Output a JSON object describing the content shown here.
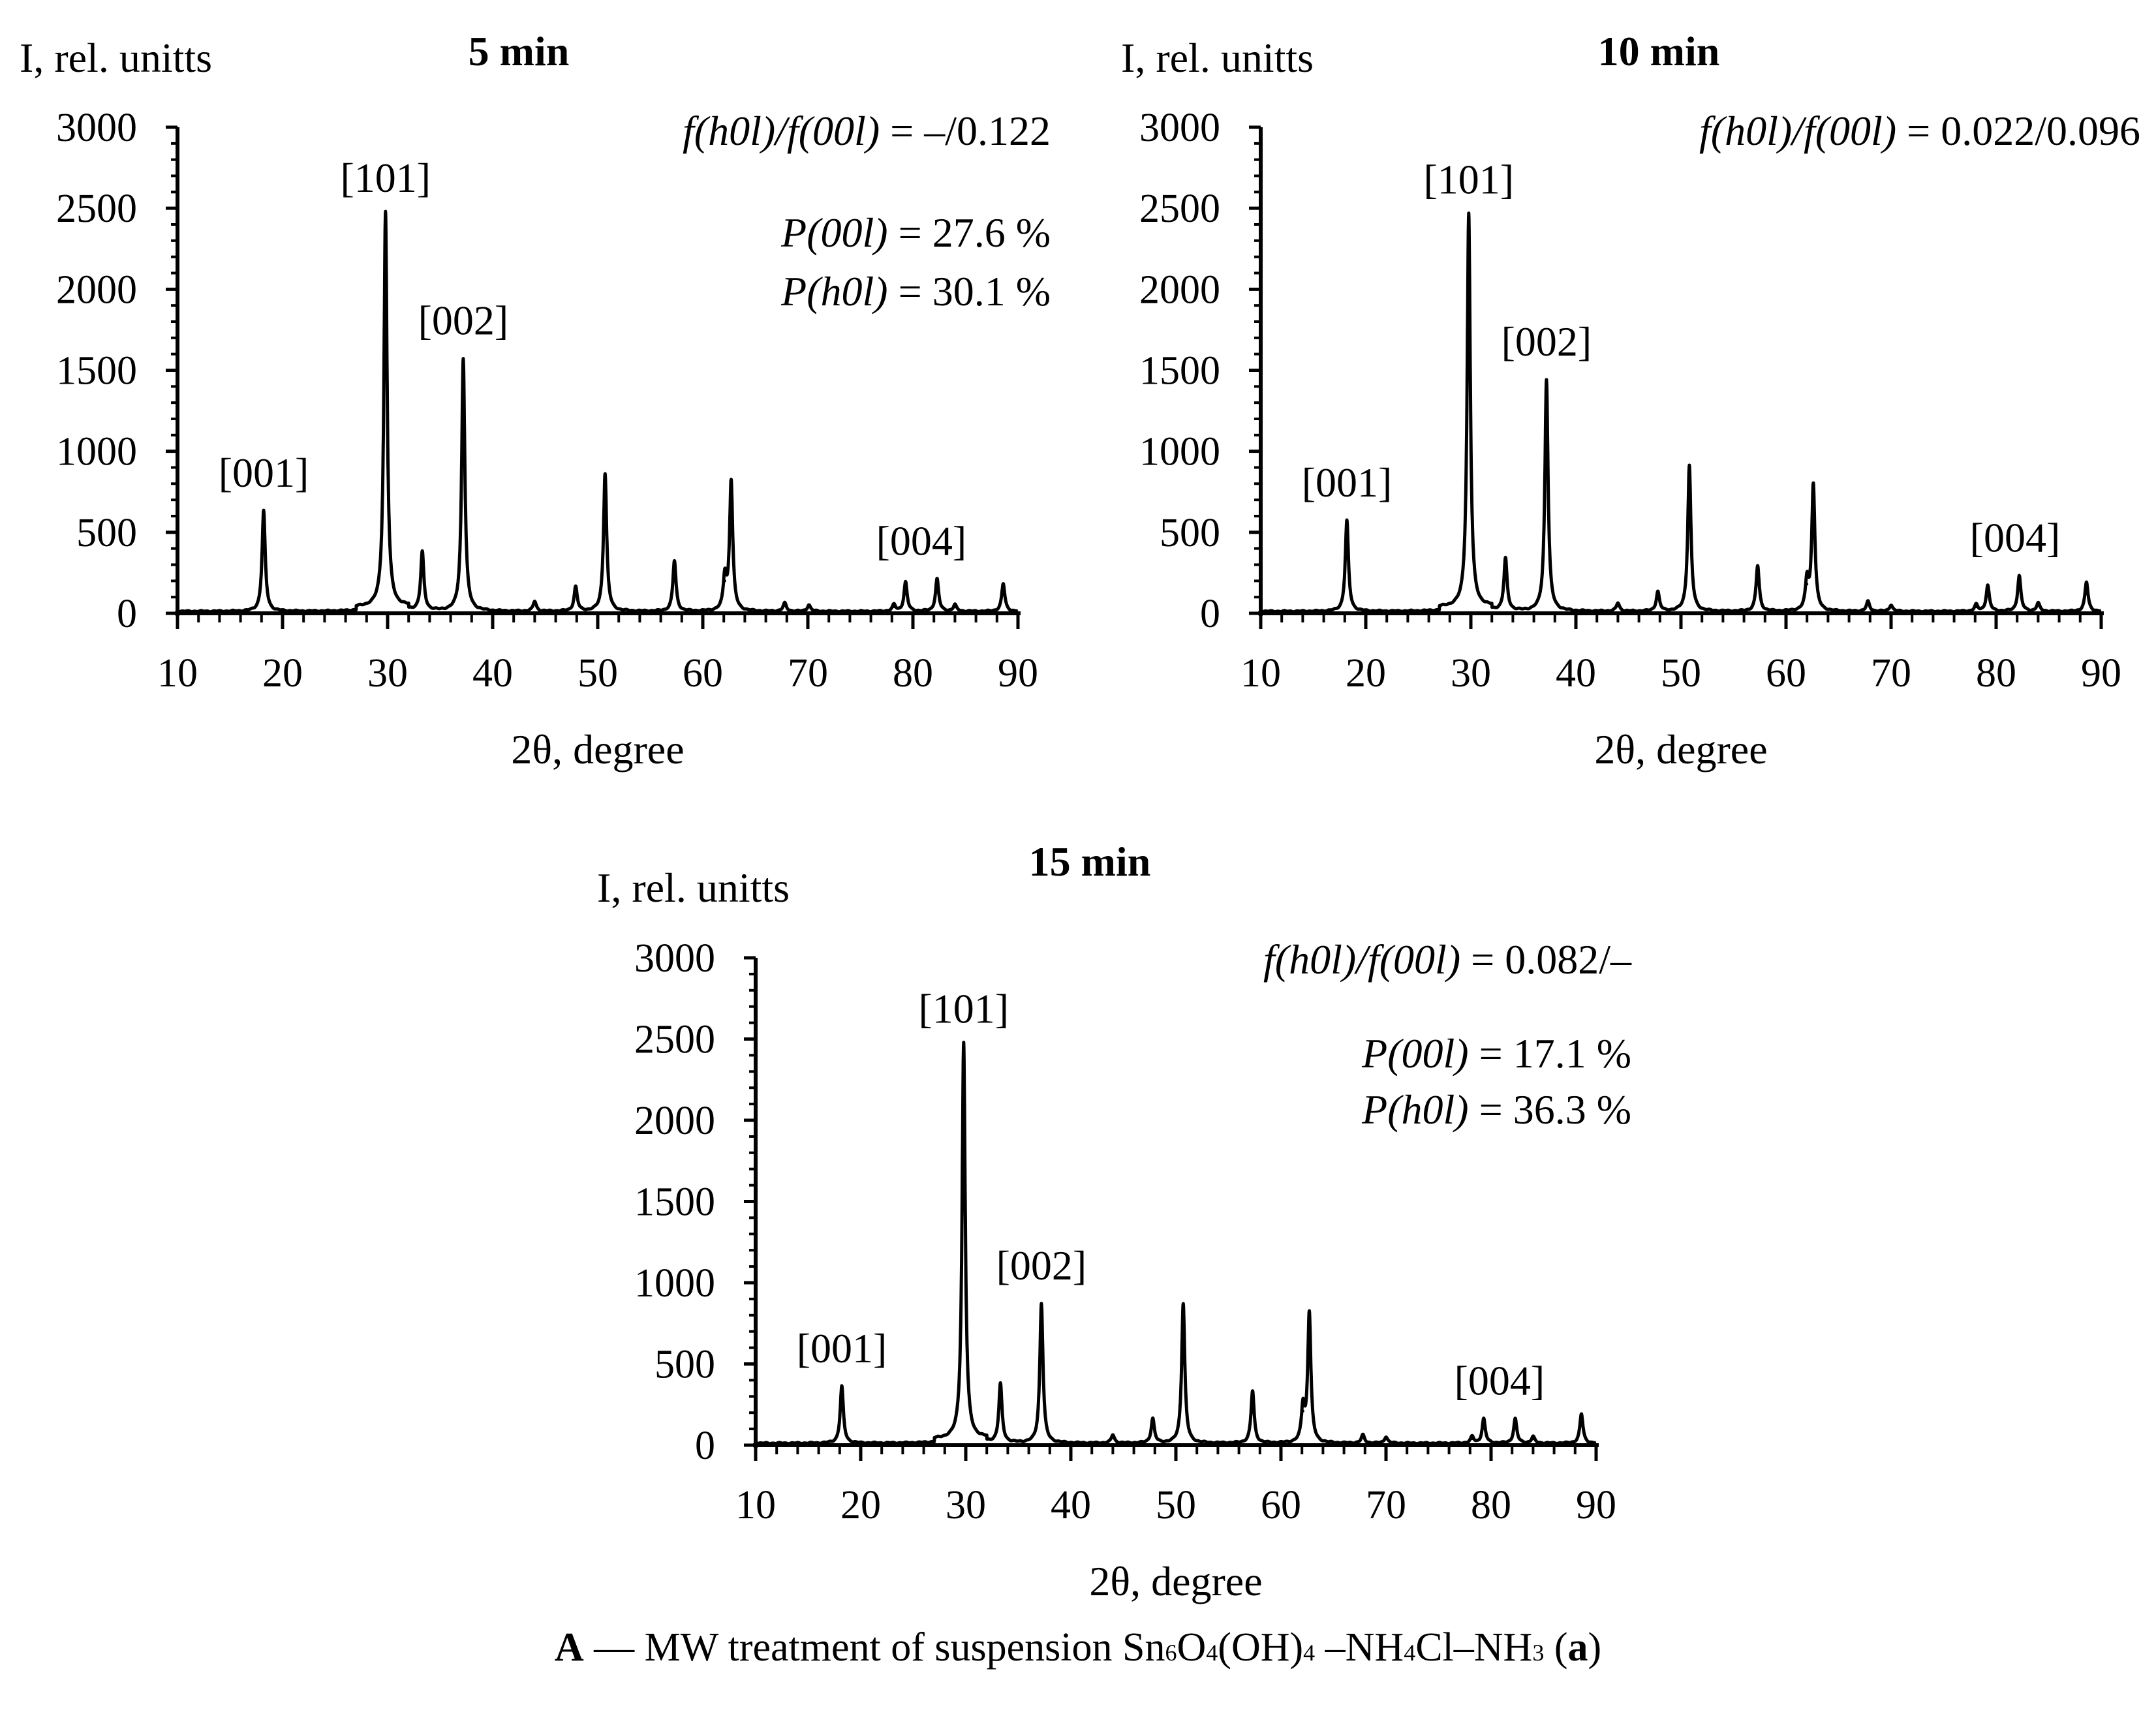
{
  "chart_data": [
    {
      "type": "line",
      "title": "5 min",
      "xlabel": "2θ, degree",
      "ylabel": "I, rel. unitts",
      "xlim": [
        10,
        90
      ],
      "ylim": [
        0,
        3000
      ],
      "xticks": [
        10,
        20,
        30,
        40,
        50,
        60,
        70,
        80,
        90
      ],
      "yticks": [
        0,
        500,
        1000,
        1500,
        2000,
        2500,
        3000
      ],
      "peaks": [
        {
          "x": 18.2,
          "y": 620
        },
        {
          "x": 29.8,
          "y": 2440
        },
        {
          "x": 33.3,
          "y": 360
        },
        {
          "x": 37.2,
          "y": 1560
        },
        {
          "x": 44.0,
          "y": 60
        },
        {
          "x": 47.9,
          "y": 150
        },
        {
          "x": 50.7,
          "y": 850
        },
        {
          "x": 57.3,
          "y": 310
        },
        {
          "x": 62.1,
          "y": 200
        },
        {
          "x": 62.7,
          "y": 800
        },
        {
          "x": 67.8,
          "y": 50
        },
        {
          "x": 70.1,
          "y": 40
        },
        {
          "x": 78.2,
          "y": 40
        },
        {
          "x": 79.3,
          "y": 180
        },
        {
          "x": 82.3,
          "y": 200
        },
        {
          "x": 84.0,
          "y": 40
        },
        {
          "x": 88.6,
          "y": 170
        }
      ],
      "peak_labels": [
        {
          "text": "[001]",
          "x": 18.2,
          "y": 620
        },
        {
          "text": "[101]",
          "x": 29.8,
          "y": 2440
        },
        {
          "text": "[002]",
          "x": 37.2,
          "y": 1560
        },
        {
          "text": "[004]",
          "x": 80.8,
          "y": 200
        }
      ],
      "annotations": {
        "f_label": "f(h0l)/f(00l)",
        "f_value": " = –/0.122",
        "p00l_label": "P(00l)",
        "p00l_value": " = 27.6 %",
        "ph0l_label": "P(h0l)",
        "ph0l_value": " = 30.1 %"
      }
    },
    {
      "type": "line",
      "title": "10 min",
      "xlabel": "2θ, degree",
      "ylabel": "I, rel. unitts",
      "xlim": [
        10,
        90
      ],
      "ylim": [
        0,
        3000
      ],
      "xticks": [
        10,
        20,
        30,
        40,
        50,
        60,
        70,
        80,
        90
      ],
      "yticks": [
        0,
        500,
        1000,
        1500,
        2000,
        2500,
        3000
      ],
      "peaks": [
        {
          "x": 18.2,
          "y": 560
        },
        {
          "x": 29.8,
          "y": 2430
        },
        {
          "x": 33.3,
          "y": 320
        },
        {
          "x": 37.2,
          "y": 1430
        },
        {
          "x": 44.0,
          "y": 50
        },
        {
          "x": 47.8,
          "y": 120
        },
        {
          "x": 50.8,
          "y": 900
        },
        {
          "x": 57.3,
          "y": 280
        },
        {
          "x": 62.0,
          "y": 180
        },
        {
          "x": 62.6,
          "y": 780
        },
        {
          "x": 67.8,
          "y": 60
        },
        {
          "x": 70.0,
          "y": 40
        },
        {
          "x": 78.1,
          "y": 40
        },
        {
          "x": 79.2,
          "y": 160
        },
        {
          "x": 82.2,
          "y": 220
        },
        {
          "x": 84.0,
          "y": 50
        },
        {
          "x": 88.6,
          "y": 180
        }
      ],
      "peak_labels": [
        {
          "text": "[001]",
          "x": 18.2,
          "y": 560
        },
        {
          "text": "[101]",
          "x": 29.8,
          "y": 2430
        },
        {
          "text": "[002]",
          "x": 37.2,
          "y": 1430
        },
        {
          "text": "[004]",
          "x": 81.8,
          "y": 220
        }
      ],
      "annotations": {
        "f_label": "f(h0l)/f(00l)",
        "f_value": " = 0.022/0.096",
        "p00l_label": "",
        "p00l_value": "",
        "ph0l_label": "",
        "ph0l_value": ""
      }
    },
    {
      "type": "line",
      "title": "15 min",
      "xlabel": "2θ, degree",
      "ylabel": "I, rel. unitts",
      "xlim": [
        10,
        90
      ],
      "ylim": [
        0,
        3000
      ],
      "xticks": [
        10,
        20,
        30,
        40,
        50,
        60,
        70,
        80,
        90
      ],
      "yticks": [
        0,
        500,
        1000,
        1500,
        2000,
        2500,
        3000
      ],
      "peaks": [
        {
          "x": 18.2,
          "y": 350
        },
        {
          "x": 29.8,
          "y": 2440
        },
        {
          "x": 33.3,
          "y": 360
        },
        {
          "x": 37.2,
          "y": 860
        },
        {
          "x": 44.0,
          "y": 50
        },
        {
          "x": 47.8,
          "y": 150
        },
        {
          "x": 50.7,
          "y": 860
        },
        {
          "x": 57.3,
          "y": 320
        },
        {
          "x": 62.1,
          "y": 210
        },
        {
          "x": 62.7,
          "y": 800
        },
        {
          "x": 67.8,
          "y": 50
        },
        {
          "x": 70.0,
          "y": 40
        },
        {
          "x": 78.2,
          "y": 40
        },
        {
          "x": 79.3,
          "y": 150
        },
        {
          "x": 82.3,
          "y": 150
        },
        {
          "x": 84.0,
          "y": 40
        },
        {
          "x": 88.6,
          "y": 180
        }
      ],
      "peak_labels": [
        {
          "text": "[001]",
          "x": 18.2,
          "y": 350
        },
        {
          "text": "[101]",
          "x": 29.8,
          "y": 2440
        },
        {
          "text": "[002]",
          "x": 37.2,
          "y": 860
        },
        {
          "text": "[004]",
          "x": 80.8,
          "y": 150
        }
      ],
      "annotations": {
        "f_label": "f(h0l)/f(00l)",
        "f_value": " = 0.082/–",
        "p00l_label": "P(00l)",
        "p00l_value": " = 17.1 %",
        "ph0l_label": "P(h0l)",
        "ph0l_value": " = 36.3 %"
      }
    }
  ],
  "caption": {
    "letter": "A",
    "text_prefix": " — MW treatment of suspension Sn",
    "sub1": "6",
    "o": "O",
    "sub2": "4",
    "oh": "(OH)",
    "sub3": "4",
    "mid": " –NH",
    "sub4": "4",
    "cl": "Cl–NH",
    "sub5": "3",
    "paren_open": " (",
    "paren_letter": "a",
    "paren_close": ")"
  }
}
